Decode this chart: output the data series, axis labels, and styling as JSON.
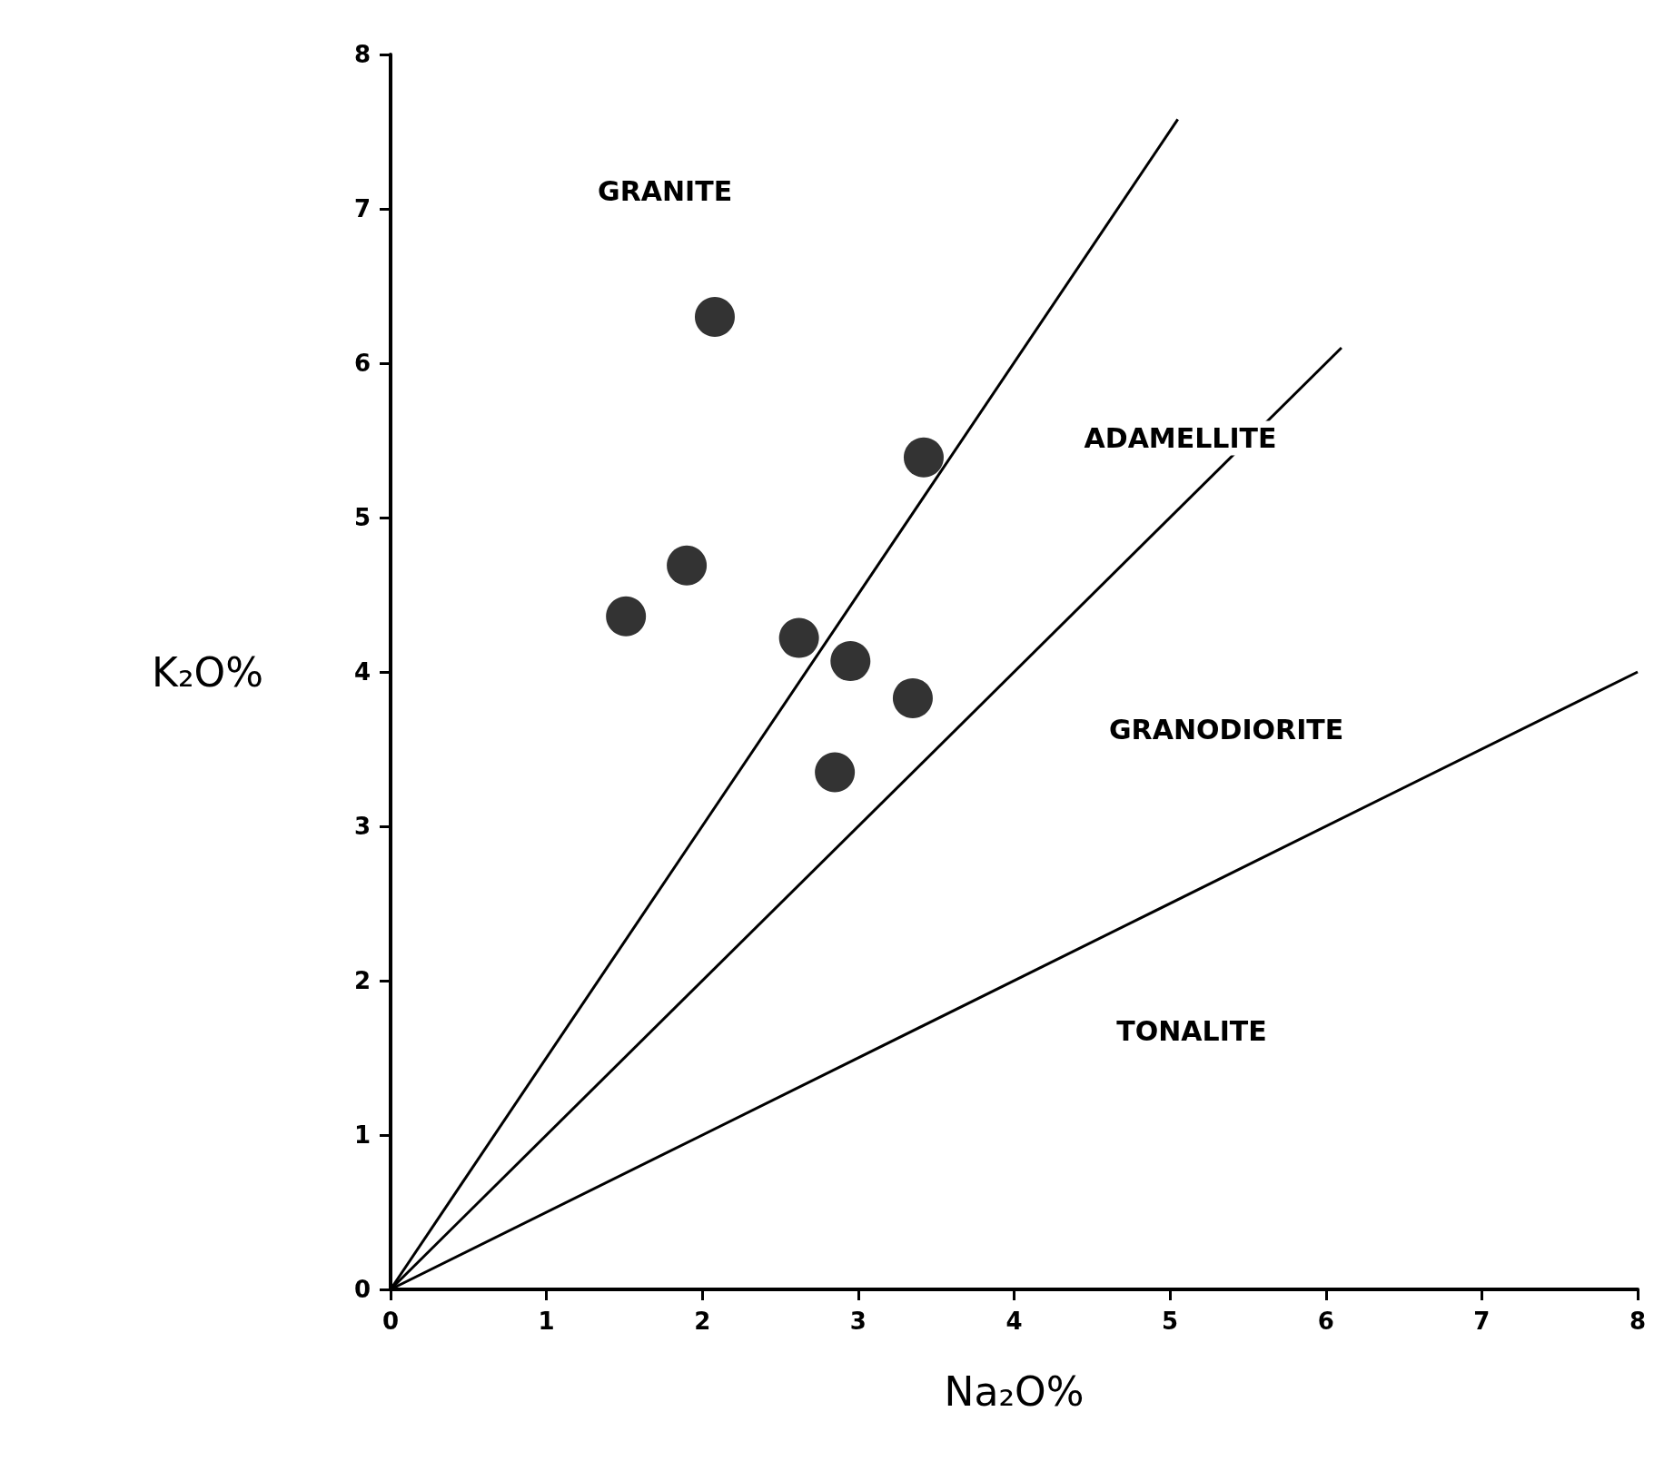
{
  "chart_data": {
    "type": "scatter",
    "xlabel": "Na₂O%",
    "ylabel": "K₂O%",
    "xlim": [
      0,
      8
    ],
    "ylim": [
      0,
      8
    ],
    "xticks": [
      0,
      1,
      2,
      3,
      4,
      5,
      6,
      7,
      8
    ],
    "yticks": [
      0,
      1,
      2,
      3,
      4,
      5,
      6,
      7,
      8
    ],
    "grid": false,
    "marker": "circle",
    "annotations": [
      "GRANITE",
      "ADAMELLITE",
      "GRANODIORITE",
      "TONALITE"
    ],
    "series": [
      {
        "color": "#000000",
        "x": [
          2.08,
          3.42,
          1.9,
          1.51,
          2.62,
          2.95,
          3.35,
          2.85
        ],
        "values": [
          6.3,
          5.39,
          4.69,
          4.36,
          4.22,
          4.07,
          3.83,
          3.35
        ]
      },
      {
        "type": "line",
        "color": "#000000",
        "marker": "none",
        "line_style": "solid",
        "x": [
          0,
          5.05
        ],
        "values": [
          0,
          7.58
        ]
      },
      {
        "type": "line",
        "color": "#000000",
        "marker": "none",
        "line_style": "solid",
        "x": [
          0,
          6.1
        ],
        "values": [
          0,
          6.1
        ]
      },
      {
        "type": "line",
        "color": "#000000",
        "marker": "none",
        "line_style": "solid",
        "x": [
          0,
          8
        ],
        "values": [
          0,
          4
        ]
      }
    ]
  }
}
